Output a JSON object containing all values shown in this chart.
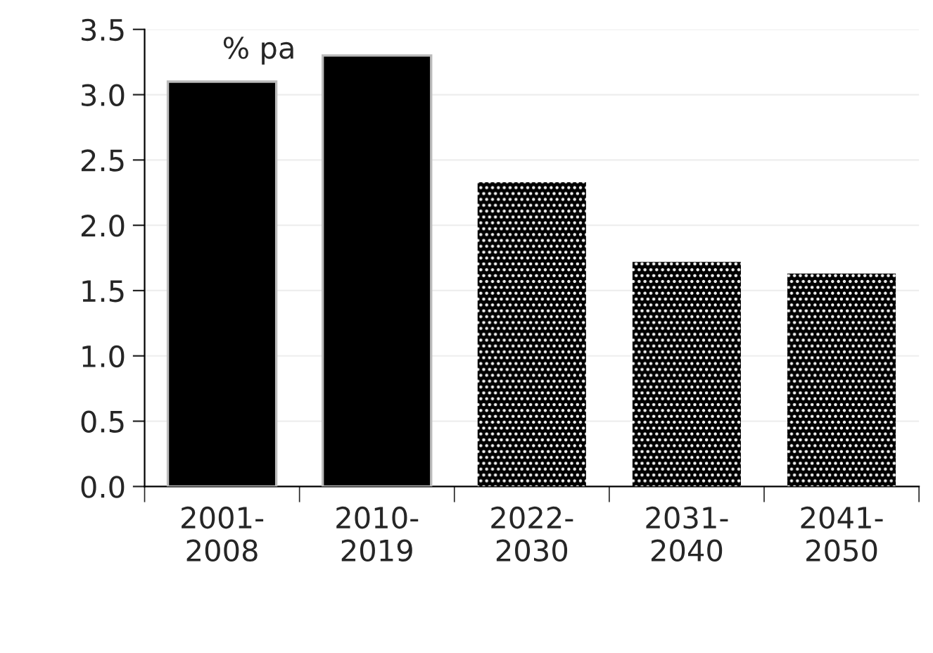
{
  "chart_data": {
    "type": "bar",
    "categories": [
      "2001-\n2008",
      "2010-\n2019",
      "2022-\n2030",
      "2031-\n2040",
      "2041-\n2050"
    ],
    "values": [
      3.1,
      3.3,
      2.33,
      1.72,
      1.63
    ],
    "colors": [
      "#000000",
      "#000000",
      "#3c3c3c",
      "#3c3c3c",
      "#3c3c3c"
    ],
    "annotations": [
      "% pa"
    ],
    "ylim": [
      0,
      3.5
    ],
    "yticks": [
      {
        "value": 0,
        "label": "0.0"
      },
      {
        "value": 0.5,
        "label": "0.5"
      },
      {
        "value": 1,
        "label": "1.0"
      },
      {
        "value": 1.5,
        "label": "1.5"
      },
      {
        "value": 2,
        "label": "2.0"
      },
      {
        "value": 2.5,
        "label": "2.5"
      },
      {
        "value": 3,
        "label": "3.0"
      },
      {
        "value": 3.5,
        "label": "3.5"
      }
    ],
    "grid": "y"
  }
}
